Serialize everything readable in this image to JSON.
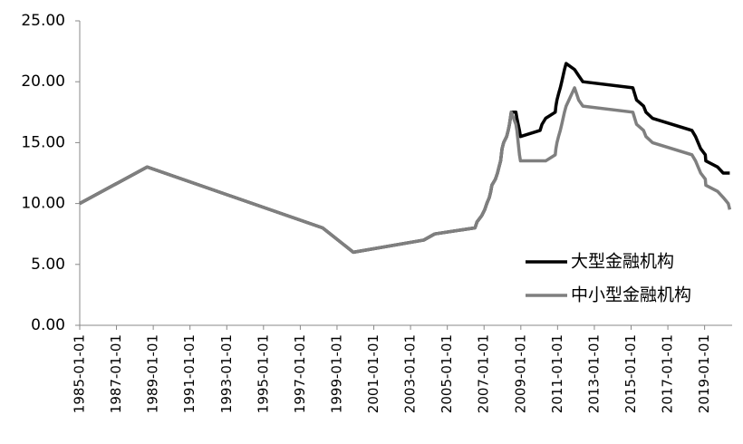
{
  "chart_data": {
    "type": "line",
    "x": [
      "1985-01-01",
      "1988-09-01",
      "1998-03-21",
      "1999-11-21",
      "2003-09-21",
      "2004-04-25",
      "2006-07-05",
      "2006-08-15",
      "2006-11-15",
      "2007-01-15",
      "2007-02-25",
      "2007-04-16",
      "2007-05-15",
      "2007-06-05",
      "2007-08-15",
      "2007-09-25",
      "2007-10-25",
      "2007-11-26",
      "2007-12-25",
      "2008-01-25",
      "2008-03-25",
      "2008-04-25",
      "2008-05-20",
      "2008-06-25",
      "2008-09-25",
      "2008-10-15",
      "2008-12-05",
      "2008-12-25",
      "2010-01-18",
      "2010-02-25",
      "2010-05-10",
      "2010-11-16",
      "2010-11-29",
      "2010-12-20",
      "2011-01-20",
      "2011-02-24",
      "2011-03-25",
      "2011-04-21",
      "2011-05-18",
      "2011-06-20",
      "2011-12-05",
      "2012-02-24",
      "2012-05-18",
      "2015-02-05",
      "2015-04-20",
      "2015-09-06",
      "2015-10-24",
      "2016-03-01",
      "2018-04-25",
      "2018-07-05",
      "2018-10-15",
      "2019-01-15",
      "2019-01-25",
      "2019-09-16",
      "2020-01-06",
      "2020-04-15",
      "2020-05-15"
    ],
    "series": [
      {
        "name": "大型金融机构",
        "color": "#000000",
        "values": [
          10,
          13,
          8,
          6,
          7,
          7.5,
          8,
          8.5,
          9,
          9.5,
          10,
          10.5,
          11,
          11.5,
          12,
          12.5,
          13,
          13.5,
          14.5,
          15,
          15.5,
          16,
          16.5,
          17.5,
          17.5,
          17,
          16,
          15.5,
          16,
          16.5,
          17,
          17.5,
          18,
          18.5,
          19,
          19.5,
          20,
          20.5,
          21,
          21.5,
          21,
          20.5,
          20,
          19.5,
          18.5,
          18,
          17.5,
          17,
          16,
          15.5,
          14.5,
          14,
          13.5,
          13,
          12.5,
          12.5,
          12.5
        ]
      },
      {
        "name": "中小型金融机构",
        "color": "#7f7f7f",
        "values": [
          10,
          13,
          8,
          6,
          7,
          7.5,
          8,
          8.5,
          9,
          9.5,
          10,
          10.5,
          11,
          11.5,
          12,
          12.5,
          13,
          13.5,
          14.5,
          15,
          15.5,
          16,
          16.5,
          17.5,
          16.5,
          16,
          14,
          13.5,
          13.5,
          13.5,
          13.5,
          14,
          14.5,
          15,
          15.5,
          16,
          16.5,
          17,
          17.5,
          18,
          19.5,
          18.5,
          18,
          17.5,
          16.5,
          16,
          15.5,
          15,
          14,
          13.5,
          12.5,
          12,
          11.5,
          11,
          10.5,
          10,
          9.5
        ]
      }
    ],
    "xlim": [
      "1985-01-01",
      "2020-07-01"
    ],
    "xticks": [
      "1985-01-01",
      "1987-01-01",
      "1989-01-01",
      "1991-01-01",
      "1993-01-01",
      "1995-01-01",
      "1997-01-01",
      "1999-01-01",
      "2001-01-01",
      "2003-01-01",
      "2005-01-01",
      "2007-01-01",
      "2009-01-01",
      "2011-01-01",
      "2013-01-01",
      "2015-01-01",
      "2017-01-01",
      "2019-01-01"
    ],
    "ylim": [
      0,
      25
    ],
    "yticks": [
      {
        "value": 0,
        "label": "0.00"
      },
      {
        "value": 5,
        "label": "5.00"
      },
      {
        "value": 10,
        "label": "10.00"
      },
      {
        "value": 15,
        "label": "15.00"
      },
      {
        "value": 20,
        "label": "20.00"
      },
      {
        "value": 25,
        "label": "25.00"
      }
    ],
    "grid": false,
    "legend": "lower-right"
  }
}
